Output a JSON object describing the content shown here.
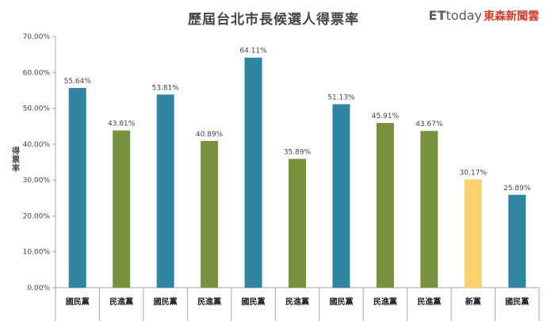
{
  "header": {
    "title": "歷屆台北市長候選人得票率",
    "logo_et": "ET",
    "logo_today": "today",
    "logo_cn": "東森新聞雲"
  },
  "chart_data": {
    "type": "bar",
    "title": "歷屆台北市長候選人得票率",
    "ylabel": "得票率",
    "xlabel": "",
    "ylim": [
      0,
      70
    ],
    "yticks": [
      "0.00%",
      "10.00%",
      "20.00%",
      "30.00%",
      "40.00%",
      "50.00%",
      "60.00%",
      "70.00%"
    ],
    "grid": false,
    "categories": [
      "國民黨",
      "民進黨",
      "國民黨",
      "民進黨",
      "國民黨",
      "民進黨",
      "國民黨",
      "民進黨",
      "民進黨",
      "新黨",
      "國民黨"
    ],
    "values": [
      55.64,
      43.81,
      53.81,
      40.89,
      64.11,
      35.89,
      51.13,
      45.91,
      43.67,
      30.17,
      25.89
    ],
    "value_labels": [
      "55.64%",
      "43.81%",
      "53.81%",
      "40.89%",
      "64.11%",
      "35.89%",
      "51.13%",
      "45.91%",
      "43.67%",
      "30.17%",
      "25.89%"
    ],
    "colors": {
      "國民黨": "#2e86a3",
      "民進黨": "#76933c",
      "新黨": "#fcd06a"
    }
  }
}
